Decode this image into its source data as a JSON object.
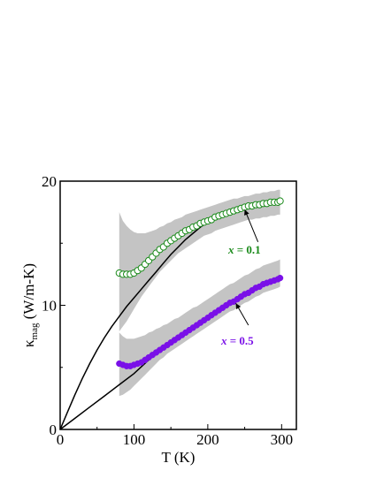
{
  "chart_data": {
    "type": "scatter",
    "xlabel": "T (K)",
    "ylabel": "κ",
    "ylabel_sub": "mag",
    "ylabel_unit": " (W/m-K)",
    "xlim": [
      0,
      320
    ],
    "ylim": [
      0,
      20
    ],
    "x_ticks": [
      0,
      100,
      200,
      300
    ],
    "y_ticks": [
      0,
      10,
      20
    ],
    "grid": false,
    "colors": {
      "x01": "#1a8a1a",
      "x05": "#7a10e8",
      "band": "#c4c4c4",
      "fit": "#000000"
    },
    "annotations": [
      {
        "label": "x",
        "value": " = 0.1",
        "series": "x01"
      },
      {
        "label": "x",
        "value": " = 0.5",
        "series": "x05"
      }
    ],
    "series": [
      {
        "id": "x01",
        "marker": "open-circle",
        "x": [
          80,
          85,
          90,
          95,
          100,
          105,
          110,
          115,
          120,
          125,
          130,
          135,
          140,
          145,
          150,
          155,
          160,
          165,
          170,
          175,
          180,
          185,
          190,
          195,
          200,
          205,
          210,
          215,
          220,
          225,
          230,
          235,
          240,
          245,
          250,
          255,
          260,
          265,
          270,
          275,
          280,
          285,
          290,
          295,
          298
        ],
        "y": [
          12.6,
          12.5,
          12.5,
          12.5,
          12.6,
          12.8,
          13.0,
          13.3,
          13.6,
          13.9,
          14.2,
          14.5,
          14.7,
          15.0,
          15.2,
          15.4,
          15.6,
          15.8,
          16.0,
          16.1,
          16.3,
          16.4,
          16.6,
          16.7,
          16.8,
          16.9,
          17.1,
          17.2,
          17.3,
          17.4,
          17.5,
          17.6,
          17.7,
          17.8,
          17.9,
          18.0,
          18.0,
          18.1,
          18.1,
          18.2,
          18.2,
          18.3,
          18.3,
          18.3,
          18.4
        ],
        "band_upper": [
          17.5,
          16.8,
          16.4,
          16.1,
          15.9,
          15.8,
          15.8,
          15.8,
          15.9,
          16.0,
          16.1,
          16.3,
          16.4,
          16.6,
          16.7,
          16.9,
          17.0,
          17.1,
          17.3,
          17.4,
          17.5,
          17.6,
          17.7,
          17.8,
          17.9,
          18.0,
          18.1,
          18.2,
          18.3,
          18.4,
          18.5,
          18.6,
          18.6,
          18.7,
          18.8,
          18.8,
          18.9,
          19.0,
          19.0,
          19.1,
          19.1,
          19.2,
          19.2,
          19.3,
          19.3
        ],
        "band_lower": [
          7.9,
          8.3,
          8.7,
          9.2,
          9.7,
          10.2,
          10.7,
          11.1,
          11.5,
          11.9,
          12.3,
          12.7,
          13.0,
          13.3,
          13.6,
          13.9,
          14.2,
          14.4,
          14.6,
          14.8,
          15.0,
          15.2,
          15.4,
          15.6,
          15.7,
          15.8,
          16.0,
          16.1,
          16.2,
          16.3,
          16.4,
          16.5,
          16.6,
          16.7,
          16.8,
          16.9,
          16.9,
          17.0,
          17.0,
          17.1,
          17.1,
          17.2,
          17.2,
          17.3,
          17.3
        ]
      },
      {
        "id": "x05",
        "marker": "filled-circle",
        "x": [
          80,
          85,
          90,
          95,
          100,
          105,
          110,
          115,
          120,
          125,
          130,
          135,
          140,
          145,
          150,
          155,
          160,
          165,
          170,
          175,
          180,
          185,
          190,
          195,
          200,
          205,
          210,
          215,
          220,
          225,
          230,
          235,
          240,
          245,
          250,
          255,
          260,
          265,
          270,
          275,
          280,
          285,
          290,
          295,
          298
        ],
        "y": [
          5.3,
          5.2,
          5.1,
          5.1,
          5.2,
          5.3,
          5.4,
          5.6,
          5.8,
          6.0,
          6.2,
          6.4,
          6.6,
          6.8,
          7.0,
          7.2,
          7.4,
          7.6,
          7.8,
          8.0,
          8.2,
          8.4,
          8.6,
          8.8,
          9.0,
          9.2,
          9.4,
          9.6,
          9.8,
          10.0,
          10.2,
          10.3,
          10.5,
          10.7,
          10.9,
          11.0,
          11.2,
          11.4,
          11.5,
          11.7,
          11.8,
          11.9,
          12.0,
          12.1,
          12.2
        ],
        "band_upper": [
          7.8,
          7.5,
          7.3,
          7.3,
          7.3,
          7.4,
          7.5,
          7.6,
          7.8,
          7.9,
          8.1,
          8.2,
          8.4,
          8.5,
          8.7,
          8.9,
          9.0,
          9.2,
          9.4,
          9.6,
          9.8,
          9.9,
          10.1,
          10.3,
          10.5,
          10.7,
          10.9,
          11.1,
          11.3,
          11.5,
          11.7,
          11.8,
          12.0,
          12.2,
          12.4,
          12.5,
          12.7,
          12.9,
          13.0,
          13.2,
          13.3,
          13.4,
          13.5,
          13.6,
          13.7
        ],
        "band_lower": [
          2.7,
          2.8,
          3.0,
          3.2,
          3.5,
          3.8,
          4.1,
          4.4,
          4.7,
          5.0,
          5.3,
          5.6,
          5.8,
          6.1,
          6.3,
          6.5,
          6.7,
          6.9,
          7.1,
          7.3,
          7.5,
          7.7,
          7.9,
          8.1,
          8.3,
          8.5,
          8.7,
          8.9,
          9.1,
          9.3,
          9.5,
          9.6,
          9.8,
          10.0,
          10.2,
          10.3,
          10.5,
          10.7,
          10.8,
          11.0,
          11.1,
          11.2,
          11.3,
          11.4,
          11.5
        ]
      }
    ],
    "fits": [
      {
        "id": "fit-x01",
        "x": [
          0,
          10,
          20,
          30,
          40,
          50,
          60,
          70,
          80,
          90,
          100,
          110,
          120,
          130,
          140,
          150,
          160,
          170,
          180,
          190,
          200,
          210,
          220,
          230,
          240,
          250,
          260,
          270,
          280,
          290,
          300
        ],
        "y": [
          0.0,
          1.4,
          2.8,
          4.1,
          5.3,
          6.4,
          7.4,
          8.3,
          9.1,
          9.9,
          10.6,
          11.3,
          12.0,
          12.7,
          13.4,
          14.1,
          14.7,
          15.3,
          15.8,
          16.3,
          16.7,
          17.1,
          17.4,
          17.6,
          17.8,
          17.95,
          18.05,
          18.15,
          18.25,
          18.35,
          18.4
        ]
      },
      {
        "id": "fit-x05",
        "x": [
          0,
          20,
          40,
          60,
          80,
          100,
          120,
          140,
          160,
          180,
          200,
          220,
          240,
          260,
          280,
          300
        ],
        "y": [
          0.0,
          0.9,
          1.8,
          2.7,
          3.6,
          4.5,
          5.6,
          6.6,
          7.5,
          8.3,
          9.0,
          9.8,
          10.5,
          11.2,
          11.8,
          12.3
        ]
      }
    ]
  }
}
